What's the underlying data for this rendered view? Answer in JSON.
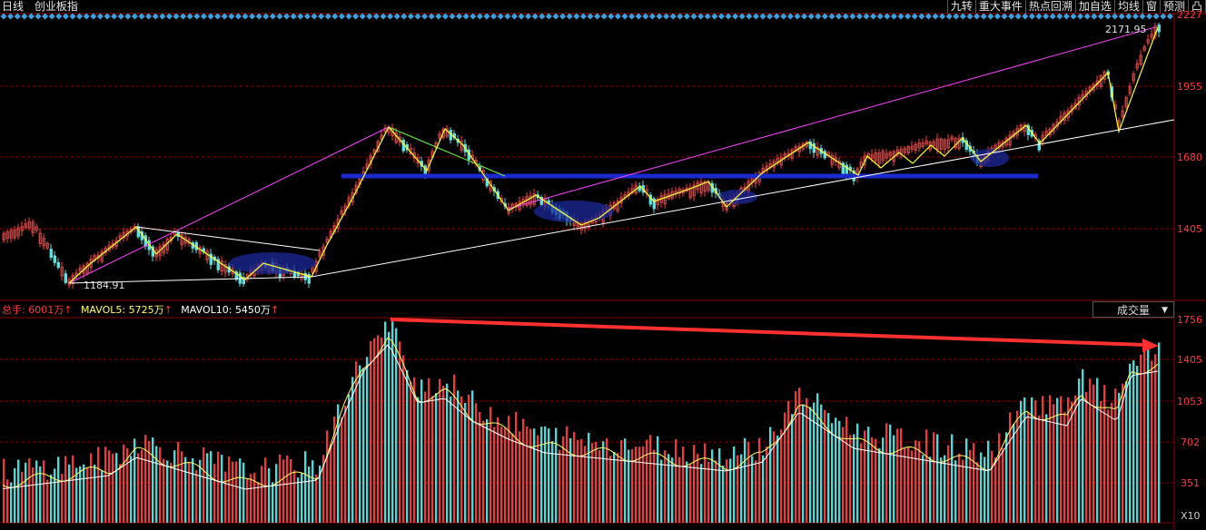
{
  "header": {
    "period": "日线",
    "index_name": "创业板指"
  },
  "toolbar": {
    "items": [
      "九转",
      "重大事件",
      "热点回溯",
      "加自选",
      "均线",
      "窗",
      "预测",
      "凸"
    ]
  },
  "price_axis": {
    "labels": [
      "2227",
      "1955",
      "1680",
      "1405"
    ]
  },
  "price_annotations": {
    "high": "2171.95",
    "low": "1184.91"
  },
  "volume_legend": {
    "total_label": "总手:",
    "total_value": "6001万",
    "mavol5_label": "MAVOL5:",
    "mavol5_value": "5725万",
    "mavol10_label": "MAVOL10:",
    "mavol10_value": "5450万",
    "up_arrow": "↑"
  },
  "volume_selector": {
    "value": "成交量"
  },
  "volume_axis": {
    "labels": [
      "1756",
      "1405",
      "1053",
      "702",
      "351"
    ],
    "multiplier": "X10"
  },
  "colors": {
    "up": "#ff3b3b",
    "down": "#52e5e5",
    "ma5": "#ffff66",
    "ma10": "#ffffff",
    "trend": "#ff44ff",
    "support": "#ffffff",
    "range_line": "#1a2acc",
    "arrow": "#ff3030",
    "marker": "#3aa0e0",
    "grid": "#8b0000"
  }
}
